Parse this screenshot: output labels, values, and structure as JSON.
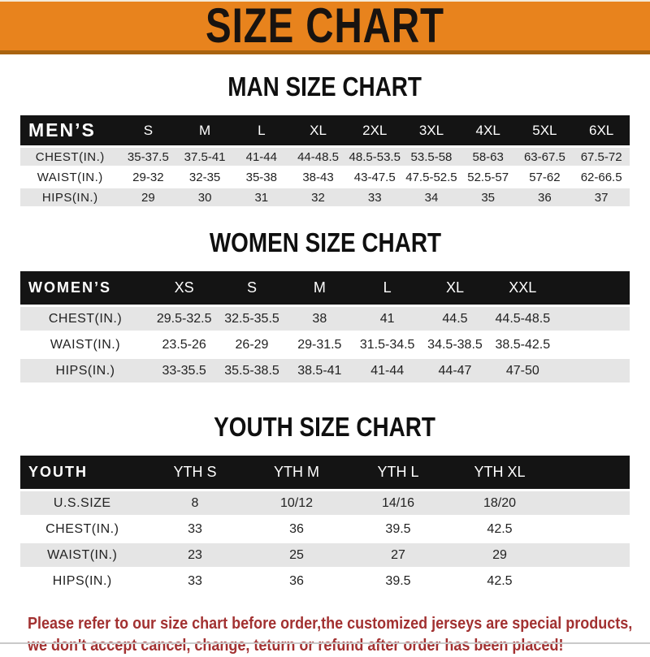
{
  "banner": {
    "title": "SIZE CHART",
    "background": "#e8831d",
    "border_bottom": "#a96310"
  },
  "colors": {
    "header_row_bg": "#141414",
    "stripe_gray": "#e5e5e5",
    "stripe_white": "#ffffff",
    "disclaimer_red": "#a23131"
  },
  "sections": [
    {
      "heading": "MAN SIZE CHART",
      "header_label": "MEN’S",
      "columns": [
        "S",
        "M",
        "L",
        "XL",
        "2XL",
        "3XL",
        "4XL",
        "5XL",
        "6XL"
      ],
      "rows": [
        {
          "label": "CHEST(IN.)",
          "values": [
            "35-37.5",
            "37.5-41",
            "41-44",
            "44-48.5",
            "48.5-53.5",
            "53.5-58",
            "58-63",
            "63-67.5",
            "67.5-72"
          ]
        },
        {
          "label": "WAIST(IN.)",
          "values": [
            "29-32",
            "32-35",
            "35-38",
            "38-43",
            "43-47.5",
            "47.5-52.5",
            "52.5-57",
            "57-62",
            "62-66.5"
          ]
        },
        {
          "label": "HIPS(IN.)",
          "values": [
            "29",
            "30",
            "31",
            "32",
            "33",
            "34",
            "35",
            "36",
            "37"
          ]
        }
      ]
    },
    {
      "heading": "WOMEN SIZE CHART",
      "header_label": "WOMEN’S",
      "columns": [
        "XS",
        "S",
        "M",
        "L",
        "XL",
        "XXL"
      ],
      "rows": [
        {
          "label": "CHEST(IN.)",
          "values": [
            "29.5-32.5",
            "32.5-35.5",
            "38",
            "41",
            "44.5",
            "44.5-48.5"
          ]
        },
        {
          "label": "WAIST(IN.)",
          "values": [
            "23.5-26",
            "26-29",
            "29-31.5",
            "31.5-34.5",
            "34.5-38.5",
            "38.5-42.5"
          ]
        },
        {
          "label": "HIPS(IN.)",
          "values": [
            "33-35.5",
            "35.5-38.5",
            "38.5-41",
            "41-44",
            "44-47",
            "47-50"
          ]
        }
      ]
    },
    {
      "heading": "YOUTH SIZE CHART",
      "header_label": "YOUTH",
      "columns": [
        "YTH S",
        "YTH M",
        "YTH L",
        "YTH XL"
      ],
      "rows": [
        {
          "label": "U.S.SIZE",
          "values": [
            "8",
            "10/12",
            "14/16",
            "18/20"
          ]
        },
        {
          "label": "CHEST(IN.)",
          "values": [
            "33",
            "36",
            "39.5",
            "42.5"
          ]
        },
        {
          "label": "WAIST(IN.)",
          "values": [
            "23",
            "25",
            "27",
            "29"
          ]
        },
        {
          "label": "HIPS(IN.)",
          "values": [
            "33",
            "36",
            "39.5",
            "42.5"
          ]
        }
      ]
    }
  ],
  "disclaimer": {
    "line1": "Please refer to our size chart before order,the customized jerseys are special products,",
    "line2": "we don't accept cancel, change, teturn or refund after order has been placed!"
  }
}
